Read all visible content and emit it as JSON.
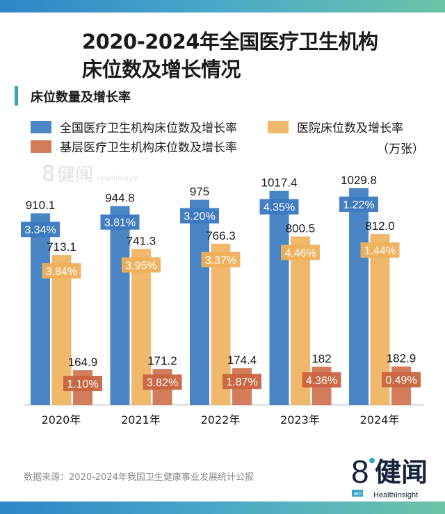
{
  "title_line1": "2020-2024年全国医疗卫生机构",
  "title_line2": "床位数及增长情况",
  "subheading": "床位数量及增长率",
  "unit": "（万张）",
  "source": "数据来源：2020-2024年我国卫生健康事业发展统计公报",
  "logo": {
    "mark": "8",
    "name": "健闻",
    "tag": "am",
    "sub": "HealthInsight"
  },
  "chart_data": {
    "type": "bar",
    "categories": [
      "2020年",
      "2021年",
      "2022年",
      "2023年",
      "2024年"
    ],
    "series": [
      {
        "name": "全国医疗卫生机构床位数及增长率",
        "color": "#4a86c5",
        "labelColor": "#3a78c0",
        "values": [
          910.1,
          944.8,
          975,
          1017.4,
          1029.8
        ],
        "value_labels": [
          "910.1",
          "944.8",
          "975",
          "1017.4",
          "1029.8"
        ],
        "growth": [
          "3.34%",
          "3.81%",
          "3.20%",
          "4.35%",
          "1.22%"
        ]
      },
      {
        "name": "医院床位数及增长率",
        "color": "#efb86a",
        "labelColor": "#eeb05c",
        "values": [
          713.1,
          741.3,
          766.3,
          800.5,
          812.0
        ],
        "value_labels": [
          "713.1",
          "741.3",
          "766.3",
          "800.5",
          "812.0"
        ],
        "growth": [
          "3.84%",
          "3.95%",
          "3.37%",
          "4.46%",
          "1.44%"
        ]
      },
      {
        "name": "基层医疗卫生机构床位数及增长率",
        "color": "#d27c5c",
        "labelColor": "#c8653f",
        "values": [
          164.9,
          171.2,
          174.4,
          182,
          182.9
        ],
        "value_labels": [
          "164.9",
          "171.2",
          "174.4",
          "182",
          "182.9"
        ],
        "growth": [
          "1.10%",
          "3.82%",
          "1.87%",
          "4.36%",
          "0.49%"
        ]
      }
    ],
    "ylim": [
      0,
      1100
    ],
    "grid": false,
    "legend": "top"
  }
}
